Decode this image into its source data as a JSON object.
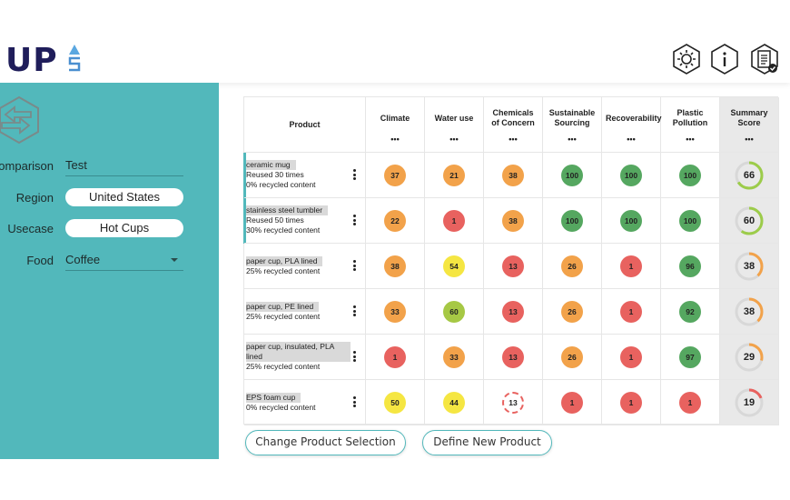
{
  "header": {
    "logo": "UP",
    "logo_sub": "S",
    "icons": [
      "settings-icon",
      "info-icon",
      "clipboard-check-icon"
    ]
  },
  "sidebar": {
    "icon": "swap-arrows-icon",
    "comparison": {
      "label": "Comparison",
      "value": "Test"
    },
    "region": {
      "label": "Region",
      "value": "United States"
    },
    "usecase": {
      "label": "Usecase",
      "value": "Hot Cups"
    },
    "food": {
      "label": "Food",
      "value": "Coffee"
    }
  },
  "colors": {
    "teal": "#52b8bb",
    "orange": "#f2a24a",
    "green": "#55a760",
    "red": "#e8625f",
    "yellow": "#f5e642",
    "lime": "#a6c845"
  },
  "table": {
    "columns": [
      {
        "label": "Product"
      },
      {
        "label": "Climate"
      },
      {
        "label": "Water use"
      },
      {
        "label": "Chemicals of Concern"
      },
      {
        "label": "Sustainable Sourcing"
      },
      {
        "label": "Recoverability"
      },
      {
        "label": "Plastic Pollution"
      },
      {
        "label": "Summary Score"
      }
    ],
    "column_menu": "•••",
    "rows": [
      {
        "name": "ceramic mug",
        "details": [
          "Reused 30 times",
          "0% recycled content"
        ],
        "selected": true,
        "scores": [
          {
            "v": "37",
            "c": "orange"
          },
          {
            "v": "21",
            "c": "orange"
          },
          {
            "v": "38",
            "c": "orange"
          },
          {
            "v": "100",
            "c": "green"
          },
          {
            "v": "100",
            "c": "green"
          },
          {
            "v": "100",
            "c": "green"
          }
        ],
        "summary": {
          "v": "66",
          "color": "#9ccc4a"
        }
      },
      {
        "name": "stainless steel tumbler",
        "details": [
          "Reused 50 times",
          "30% recycled content"
        ],
        "selected": true,
        "scores": [
          {
            "v": "22",
            "c": "orange"
          },
          {
            "v": "1",
            "c": "red"
          },
          {
            "v": "38",
            "c": "orange"
          },
          {
            "v": "100",
            "c": "green"
          },
          {
            "v": "100",
            "c": "green"
          },
          {
            "v": "100",
            "c": "green"
          }
        ],
        "summary": {
          "v": "60",
          "color": "#9ccc4a"
        }
      },
      {
        "name": "paper cup, PLA lined",
        "details": [
          "25% recycled content"
        ],
        "scores": [
          {
            "v": "38",
            "c": "orange"
          },
          {
            "v": "54",
            "c": "yellow"
          },
          {
            "v": "13",
            "c": "red"
          },
          {
            "v": "26",
            "c": "orange"
          },
          {
            "v": "1",
            "c": "red"
          },
          {
            "v": "96",
            "c": "green"
          }
        ],
        "summary": {
          "v": "38",
          "color": "#f2a24a"
        }
      },
      {
        "name": "paper cup, PE lined",
        "details": [
          "25% recycled content"
        ],
        "scores": [
          {
            "v": "33",
            "c": "orange"
          },
          {
            "v": "60",
            "c": "lime"
          },
          {
            "v": "13",
            "c": "red"
          },
          {
            "v": "26",
            "c": "orange"
          },
          {
            "v": "1",
            "c": "red"
          },
          {
            "v": "92",
            "c": "green"
          }
        ],
        "summary": {
          "v": "38",
          "color": "#f2a24a"
        }
      },
      {
        "name": "paper cup, insulated, PLA lined",
        "details": [
          "25% recycled content"
        ],
        "scores": [
          {
            "v": "1",
            "c": "red"
          },
          {
            "v": "33",
            "c": "orange"
          },
          {
            "v": "13",
            "c": "red"
          },
          {
            "v": "26",
            "c": "orange"
          },
          {
            "v": "1",
            "c": "red"
          },
          {
            "v": "97",
            "c": "green"
          }
        ],
        "summary": {
          "v": "29",
          "color": "#f2a24a"
        }
      },
      {
        "name": "EPS foam cup",
        "details": [
          "0% recycled content"
        ],
        "scores": [
          {
            "v": "50",
            "c": "yellow"
          },
          {
            "v": "44",
            "c": "yellow"
          },
          {
            "v": "13",
            "c": "red",
            "dashed": true
          },
          {
            "v": "1",
            "c": "red"
          },
          {
            "v": "1",
            "c": "red"
          },
          {
            "v": "1",
            "c": "red"
          }
        ],
        "summary": {
          "v": "19",
          "color": "#e8625f"
        }
      }
    ]
  },
  "buttons": {
    "change": "Change Product Selection",
    "define": "Define New Product"
  }
}
